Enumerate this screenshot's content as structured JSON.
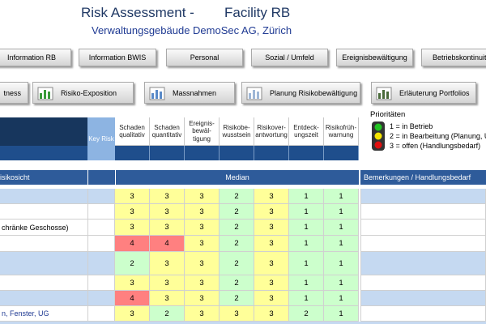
{
  "header": {
    "title": "Risk Assessment -",
    "facility": "Facility RB",
    "subtitle": "Verwaltungsgebäude DemoSec AG, Zürich"
  },
  "nav_buttons": [
    "Information  RB",
    "Information  BWIS",
    "Personal",
    "Sozial / Umfeld",
    "Ereignisbewältigung",
    "Betriebskontinuit"
  ],
  "tool_buttons": [
    "tness",
    "Risiko-Exposition",
    "Massnahmen",
    "Planung Risikobewältigung",
    "Erläuterung Portfolios"
  ],
  "legend": {
    "title": "Prioritäten",
    "items": [
      "1 = in Betrieb",
      "2 = in Bearbeitung (Planung, U",
      "3 = offen (Handlungsbedarf)"
    ]
  },
  "table": {
    "key_risk": "Key Risk",
    "columns": [
      "Schaden\nqualitativ",
      "Schaden\nquantitativ",
      "Ereignis-\nbewäl-\ntigung",
      "Risikobe-\nwusstsein",
      "Risikover-\nantwortung",
      "Entdeck-\nungszeit",
      "Risikofrüh-\nwarnung"
    ],
    "section": "isikosicht",
    "median": "Median",
    "remarks": "Bemerkungen / Handlungsbedarf",
    "value_colors": {
      "1": "#ccffcc",
      "2": "#ccffcc",
      "3": "#ffff99",
      "4": "#ff8080"
    },
    "rows": [
      {
        "values": [
          3,
          3,
          3,
          2,
          3,
          1,
          1
        ]
      },
      {
        "values": [
          3,
          3,
          3,
          2,
          3,
          1,
          1
        ]
      },
      {
        "label": "chränke Geschosse)",
        "values": [
          3,
          3,
          3,
          2,
          3,
          1,
          1
        ]
      },
      {
        "values": [
          4,
          4,
          3,
          2,
          3,
          1,
          1
        ]
      },
      {
        "values": [
          2,
          3,
          3,
          2,
          3,
          1,
          1
        ]
      },
      {
        "values": [
          3,
          3,
          3,
          2,
          3,
          1,
          1
        ]
      },
      {
        "values": [
          4,
          3,
          3,
          2,
          3,
          1,
          1
        ]
      },
      {
        "label": "n, Fenster, UG",
        "values": [
          3,
          2,
          3,
          3,
          3,
          2,
          1
        ]
      }
    ]
  }
}
